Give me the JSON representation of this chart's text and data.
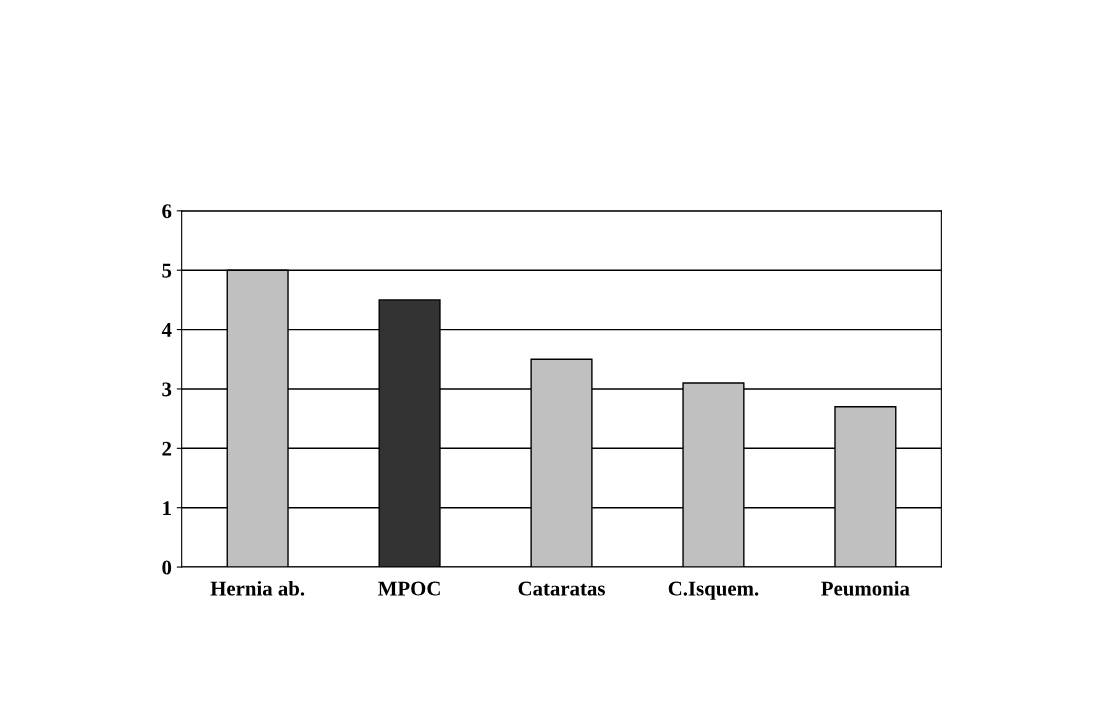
{
  "chart_data": {
    "type": "bar",
    "categories": [
      "Hernia ab.",
      "MPOC",
      "Cataratas",
      "C.Isquem.",
      "Peumonia"
    ],
    "values": [
      5.0,
      4.5,
      3.5,
      3.1,
      2.7
    ],
    "colors": [
      "#c0c0c0",
      "#333333",
      "#c0c0c0",
      "#c0c0c0",
      "#c0c0c0"
    ],
    "ylim": [
      0,
      6
    ],
    "yticks": [
      0,
      1,
      2,
      3,
      4,
      5,
      6
    ],
    "grid": "y"
  }
}
